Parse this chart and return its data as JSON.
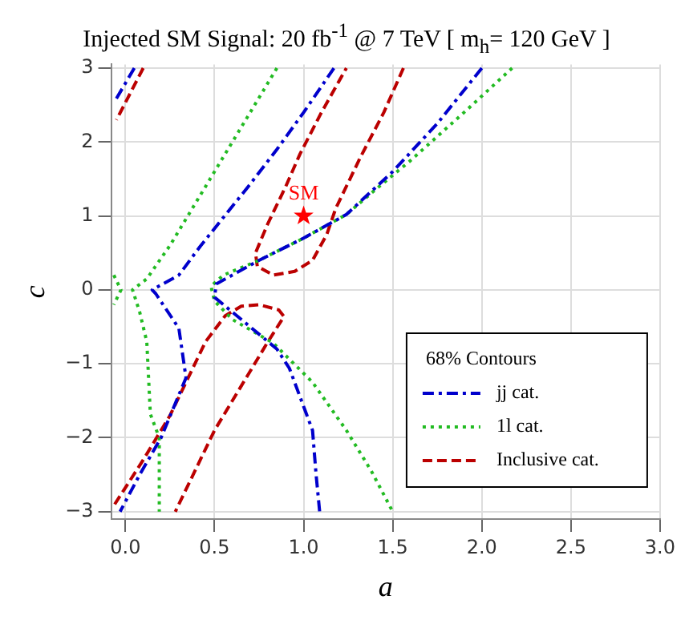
{
  "chart_data": {
    "type": "line",
    "title": "Injected SM Signal: 20 fb$^{-1}$ @ 7 TeV [ m$_{h}$= 120 GeV ]",
    "xlabel": "a",
    "ylabel": "c",
    "legend_title": "68% Contours",
    "legend": "bottom right",
    "grid": true,
    "marker": "none",
    "xlim": [
      -0.08,
      3.0
    ],
    "ylim": [
      -3.1,
      3.05
    ],
    "xticks": [
      {
        "value": 0,
        "label": "0.0"
      },
      {
        "value": 0.5,
        "label": "0.5"
      },
      {
        "value": 1,
        "label": "1.0"
      },
      {
        "value": 1.5,
        "label": "1.5"
      },
      {
        "value": 2,
        "label": "2.0"
      },
      {
        "value": 2.5,
        "label": "2.5"
      },
      {
        "value": 3,
        "label": "3.0"
      }
    ],
    "yticks": [
      {
        "value": -3,
        "label": "−3"
      },
      {
        "value": -2,
        "label": "−2"
      },
      {
        "value": -1,
        "label": "−1"
      },
      0,
      1,
      2,
      3
    ],
    "series": [
      {
        "name": "jj cat.",
        "color": "#0000cc",
        "line_style": "dashdot",
        "x": [
          1.17,
          1.0,
          0.85,
          0.69,
          0.42,
          0.3,
          0.15,
          0.17,
          0.3,
          0.34,
          0.2,
          0.08,
          -0.03,
          null,
          2.0,
          1.75,
          1.5,
          1.24,
          1.0,
          0.75,
          0.51,
          0.5,
          0.65,
          0.85,
          0.92,
          1.05,
          1.07,
          1.09,
          null,
          0.05,
          -0.06
        ],
        "values": [
          3,
          2.4,
          1.9,
          1.4,
          0.59,
          0.2,
          0,
          -0.05,
          -0.52,
          -1.19,
          -2,
          -2.5,
          -3,
          null,
          3,
          2.25,
          1.6,
          1.02,
          0.7,
          0.4,
          0.08,
          -0.1,
          -0.4,
          -0.8,
          -1.06,
          -1.9,
          -2.5,
          -3,
          null,
          3,
          2.55
        ]
      },
      {
        "name": "1l cat.",
        "color": "#22bb22",
        "line_style": "dotted",
        "x": [
          0.85,
          0.7,
          0.55,
          0.4,
          0.25,
          0.12,
          0.04,
          0.08,
          0.12,
          0.14,
          0.19,
          0.19,
          null,
          2.17,
          1.9,
          1.6,
          1.4,
          1.24,
          1.0,
          0.75,
          0.55,
          0.48,
          0.5,
          0.6,
          0.83,
          1.05,
          1.24,
          1.38,
          1.5,
          null,
          -0.065,
          -0.025,
          -0.065
        ],
        "values": [
          3,
          2.4,
          1.8,
          1.2,
          0.6,
          0.15,
          0,
          -0.3,
          -0.7,
          -1.68,
          -2,
          -3,
          null,
          3,
          2.4,
          1.75,
          1.35,
          1.02,
          0.7,
          0.4,
          0.2,
          0.05,
          -0.15,
          -0.4,
          -0.72,
          -1.25,
          -1.9,
          -2.45,
          -3,
          null,
          0.2,
          0,
          -0.2
        ]
      },
      {
        "name": "Inclusive cat.",
        "color": "#bb0000",
        "line_style": "dashed",
        "x": [
          1.56,
          1.45,
          1.32,
          1.24,
          1.18,
          1.13,
          1.05,
          0.95,
          0.83,
          0.74,
          0.73,
          0.8,
          0.9,
          0.98,
          1.1,
          1.24,
          null,
          -0.06,
          0.1,
          0.25,
          0.35,
          0.45,
          0.56,
          0.65,
          0.75,
          0.86,
          0.89,
          0.8,
          0.65,
          0.5,
          0.38,
          0.28,
          null,
          0.1,
          -0.05
        ],
        "values": [
          3,
          2.4,
          1.8,
          1.4,
          1.1,
          0.75,
          0.4,
          0.25,
          0.2,
          0.32,
          0.5,
          0.9,
          1.4,
          1.84,
          2.4,
          3,
          null,
          -2.9,
          -2.3,
          -1.7,
          -1.2,
          -0.7,
          -0.35,
          -0.22,
          -0.2,
          -0.27,
          -0.36,
          -0.7,
          -1.3,
          -1.9,
          -2.5,
          -3,
          null,
          3,
          2.3
        ]
      },
      {
        "name": "SM",
        "type": "scatter",
        "marker": "star",
        "color": "#ff0000",
        "x": [
          1
        ],
        "values": [
          1
        ]
      }
    ]
  }
}
